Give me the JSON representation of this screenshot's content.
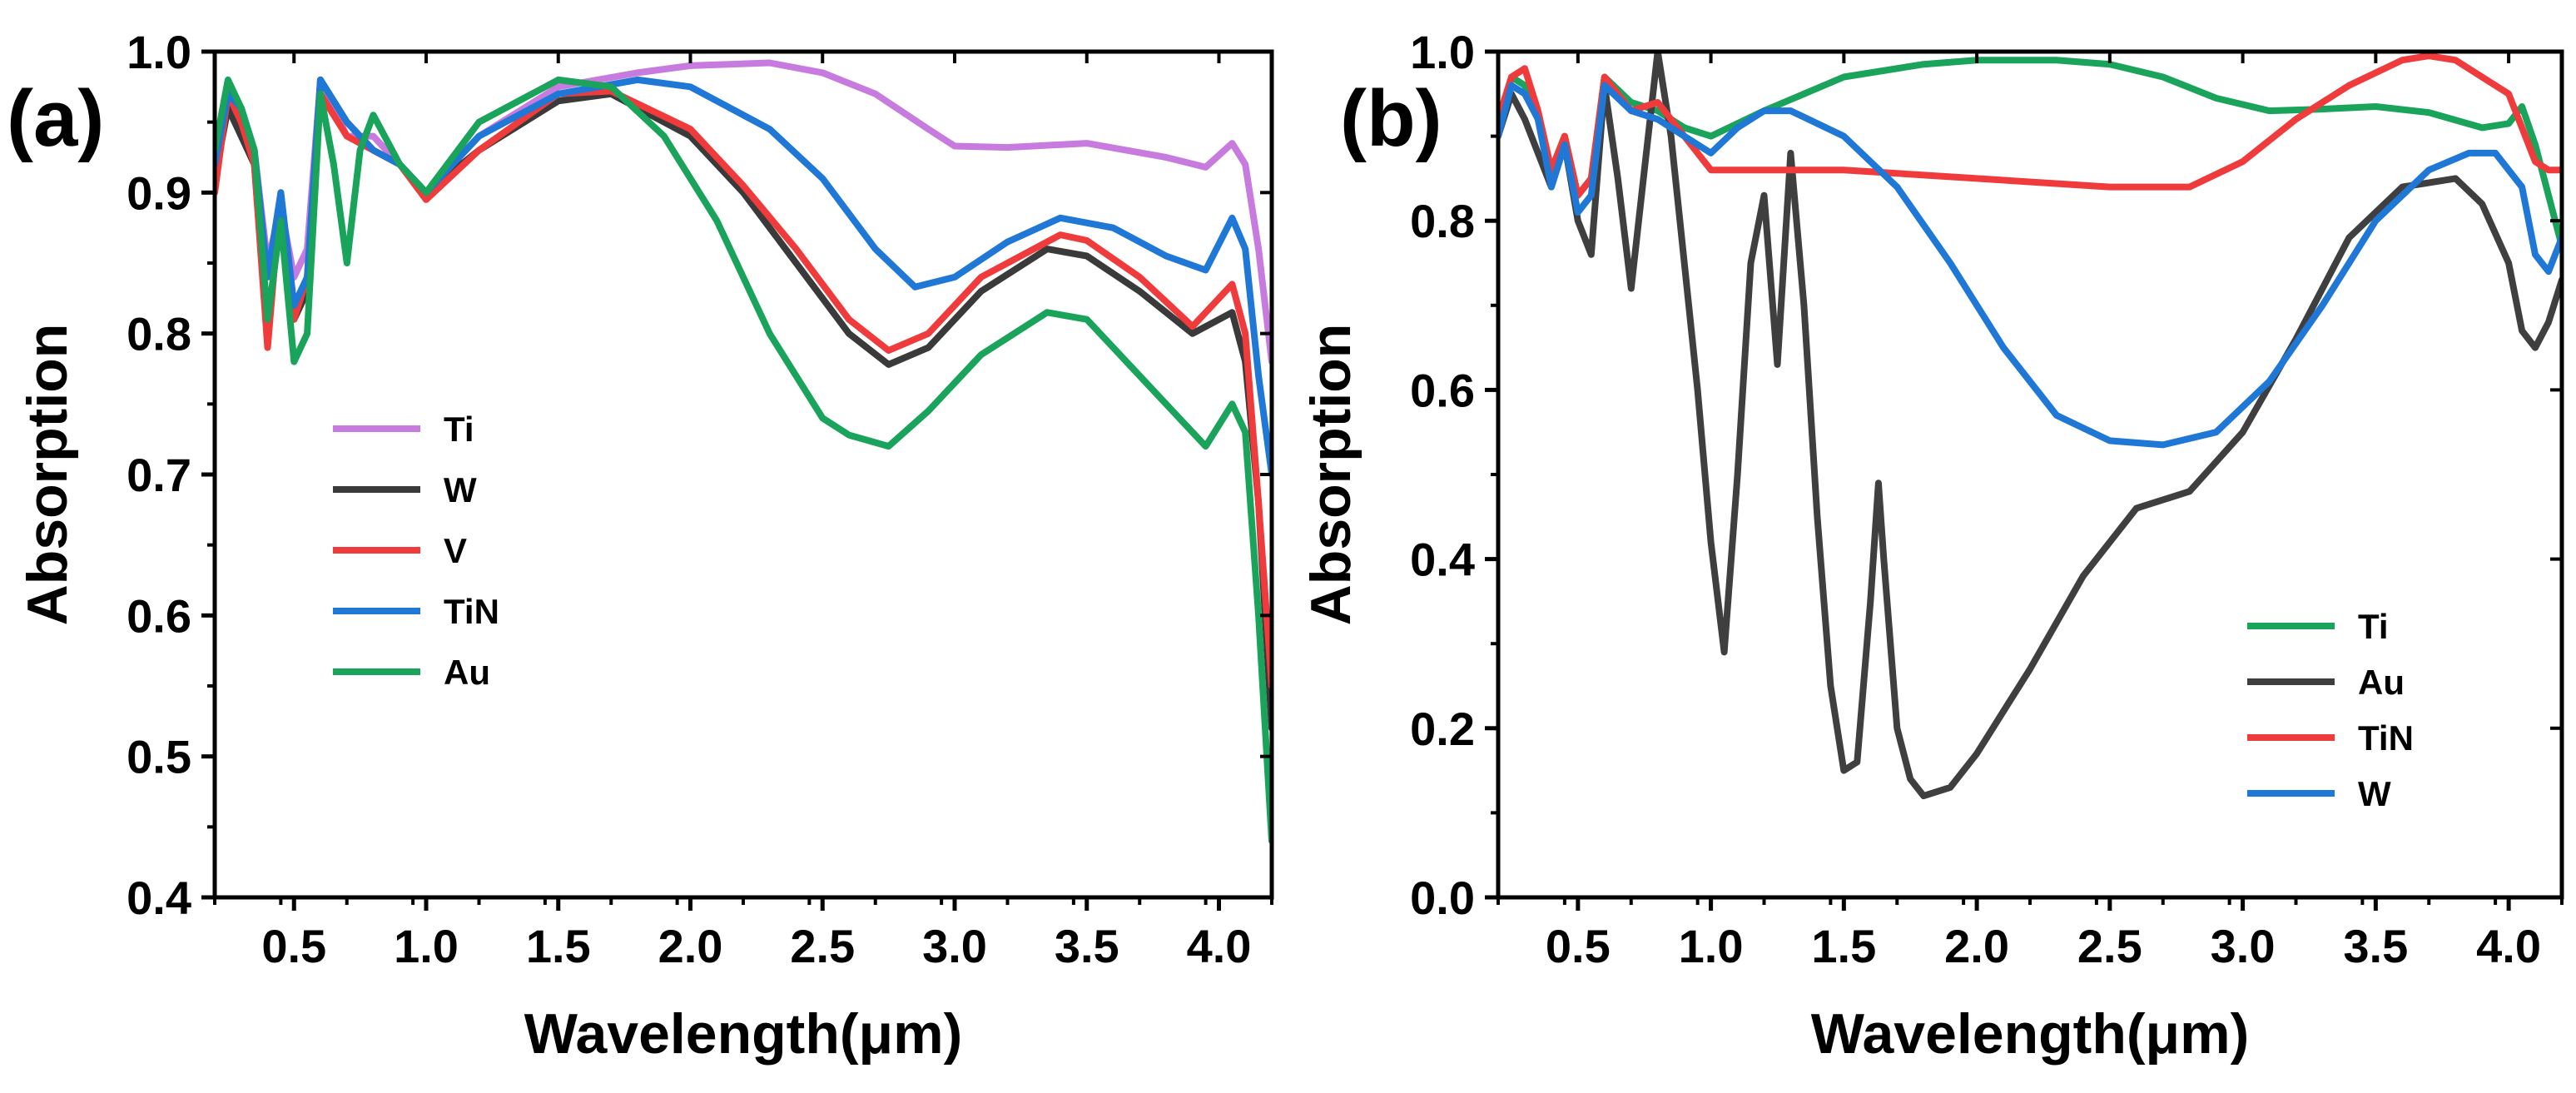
{
  "chart_data": [
    {
      "type": "line",
      "panel_label": "(a)",
      "xlabel": "Wavelength(μm)",
      "ylabel": "Absorption",
      "xlim": [
        0.2,
        4.2
      ],
      "ylim": [
        0.4,
        1.0
      ],
      "xticks": [
        0.5,
        1.0,
        1.5,
        2.0,
        2.5,
        3.0,
        3.5,
        4.0
      ],
      "xtick_labels": [
        "0.5",
        "1.0",
        "1.5",
        "2.0",
        "2.5",
        "3.0",
        "3.5",
        "4.0"
      ],
      "yticks": [
        0.4,
        0.5,
        0.6,
        0.7,
        0.8,
        0.9,
        1.0
      ],
      "ytick_labels": [
        "0.4",
        "0.5",
        "0.6",
        "0.7",
        "0.8",
        "0.9",
        "1.0"
      ],
      "legend_position": "center-left",
      "series": [
        {
          "name": "Ti",
          "color": "#c77bdf",
          "x": [
            0.2,
            0.25,
            0.3,
            0.35,
            0.4,
            0.45,
            0.5,
            0.55,
            0.6,
            0.7,
            0.8,
            0.9,
            1.0,
            1.2,
            1.5,
            1.8,
            2.0,
            2.3,
            2.5,
            2.7,
            2.9,
            3.0,
            3.2,
            3.5,
            3.8,
            3.95,
            4.05,
            4.1,
            4.15,
            4.2
          ],
          "y": [
            0.93,
            0.97,
            0.96,
            0.93,
            0.85,
            0.89,
            0.84,
            0.86,
            0.98,
            0.94,
            0.94,
            0.92,
            0.9,
            0.94,
            0.975,
            0.985,
            0.99,
            0.992,
            0.985,
            0.97,
            0.945,
            0.933,
            0.932,
            0.935,
            0.925,
            0.918,
            0.935,
            0.92,
            0.86,
            0.78
          ]
        },
        {
          "name": "W",
          "color": "#3a3a3a",
          "x": [
            0.2,
            0.25,
            0.3,
            0.35,
            0.4,
            0.45,
            0.5,
            0.55,
            0.6,
            0.7,
            0.8,
            0.9,
            1.0,
            1.2,
            1.5,
            1.7,
            2.0,
            2.2,
            2.4,
            2.6,
            2.75,
            2.9,
            3.1,
            3.35,
            3.5,
            3.7,
            3.9,
            4.05,
            4.1,
            4.15,
            4.2
          ],
          "y": [
            0.91,
            0.96,
            0.94,
            0.92,
            0.8,
            0.89,
            0.81,
            0.83,
            0.98,
            0.95,
            0.93,
            0.92,
            0.9,
            0.93,
            0.965,
            0.97,
            0.94,
            0.9,
            0.85,
            0.8,
            0.778,
            0.79,
            0.83,
            0.86,
            0.855,
            0.83,
            0.8,
            0.815,
            0.78,
            0.68,
            0.52
          ]
        },
        {
          "name": "V",
          "color": "#ef3b3b",
          "x": [
            0.2,
            0.25,
            0.3,
            0.35,
            0.4,
            0.45,
            0.5,
            0.55,
            0.6,
            0.7,
            0.8,
            0.9,
            1.0,
            1.2,
            1.5,
            1.7,
            2.0,
            2.2,
            2.4,
            2.6,
            2.75,
            2.9,
            3.1,
            3.4,
            3.5,
            3.7,
            3.9,
            4.05,
            4.1,
            4.15,
            4.2
          ],
          "y": [
            0.9,
            0.97,
            0.95,
            0.92,
            0.79,
            0.9,
            0.81,
            0.84,
            0.97,
            0.94,
            0.93,
            0.92,
            0.895,
            0.93,
            0.97,
            0.972,
            0.945,
            0.905,
            0.86,
            0.81,
            0.788,
            0.8,
            0.84,
            0.87,
            0.866,
            0.84,
            0.805,
            0.835,
            0.8,
            0.68,
            0.55
          ]
        },
        {
          "name": "TiN",
          "color": "#1f77d6",
          "x": [
            0.2,
            0.25,
            0.3,
            0.35,
            0.4,
            0.45,
            0.5,
            0.55,
            0.6,
            0.7,
            0.8,
            0.9,
            1.0,
            1.2,
            1.5,
            1.8,
            2.0,
            2.3,
            2.5,
            2.7,
            2.85,
            3.0,
            3.2,
            3.4,
            3.6,
            3.8,
            3.95,
            4.05,
            4.1,
            4.15,
            4.2
          ],
          "y": [
            0.92,
            0.97,
            0.96,
            0.93,
            0.84,
            0.9,
            0.82,
            0.84,
            0.98,
            0.95,
            0.93,
            0.92,
            0.9,
            0.94,
            0.97,
            0.98,
            0.975,
            0.945,
            0.91,
            0.86,
            0.833,
            0.84,
            0.865,
            0.882,
            0.875,
            0.855,
            0.845,
            0.882,
            0.86,
            0.77,
            0.7
          ]
        },
        {
          "name": "Au",
          "color": "#1aa35a",
          "x": [
            0.2,
            0.25,
            0.3,
            0.35,
            0.4,
            0.45,
            0.5,
            0.55,
            0.6,
            0.65,
            0.7,
            0.75,
            0.8,
            0.9,
            1.0,
            1.2,
            1.5,
            1.7,
            1.9,
            2.1,
            2.3,
            2.5,
            2.6,
            2.75,
            2.9,
            3.1,
            3.35,
            3.5,
            3.7,
            3.85,
            3.95,
            4.05,
            4.1,
            4.15,
            4.2
          ],
          "y": [
            0.93,
            0.98,
            0.96,
            0.93,
            0.81,
            0.88,
            0.78,
            0.8,
            0.97,
            0.92,
            0.85,
            0.93,
            0.955,
            0.92,
            0.9,
            0.95,
            0.98,
            0.975,
            0.94,
            0.88,
            0.8,
            0.74,
            0.728,
            0.72,
            0.745,
            0.785,
            0.815,
            0.81,
            0.77,
            0.74,
            0.72,
            0.75,
            0.73,
            0.6,
            0.44
          ]
        }
      ]
    },
    {
      "type": "line",
      "panel_label": "(b)",
      "xlabel": "Wavelength(μm)",
      "ylabel": "Absorption",
      "xlim": [
        0.2,
        4.2
      ],
      "ylim": [
        0.0,
        1.0
      ],
      "xticks": [
        0.5,
        1.0,
        1.5,
        2.0,
        2.5,
        3.0,
        3.5,
        4.0
      ],
      "xtick_labels": [
        "0.5",
        "1.0",
        "1.5",
        "2.0",
        "2.5",
        "3.0",
        "3.5",
        "4.0"
      ],
      "yticks": [
        0.0,
        0.2,
        0.4,
        0.6,
        0.8,
        1.0
      ],
      "ytick_labels": [
        "0.0",
        "0.2",
        "0.4",
        "0.6",
        "0.8",
        "1.0"
      ],
      "legend_position": "bottom-right",
      "series": [
        {
          "name": "Ti",
          "color": "#1aa35a",
          "x": [
            0.2,
            0.25,
            0.3,
            0.35,
            0.4,
            0.45,
            0.5,
            0.55,
            0.6,
            0.7,
            0.8,
            0.9,
            1.0,
            1.2,
            1.5,
            1.8,
            2.0,
            2.3,
            2.5,
            2.7,
            2.9,
            3.1,
            3.3,
            3.5,
            3.7,
            3.9,
            4.0,
            4.05,
            4.1,
            4.15,
            4.2
          ],
          "y": [
            0.91,
            0.97,
            0.96,
            0.92,
            0.86,
            0.9,
            0.83,
            0.85,
            0.97,
            0.94,
            0.93,
            0.91,
            0.9,
            0.93,
            0.97,
            0.985,
            0.99,
            0.99,
            0.985,
            0.97,
            0.945,
            0.93,
            0.932,
            0.935,
            0.928,
            0.91,
            0.915,
            0.935,
            0.89,
            0.83,
            0.77
          ]
        },
        {
          "name": "Au",
          "color": "#3f3f3f",
          "x": [
            0.2,
            0.25,
            0.3,
            0.35,
            0.4,
            0.45,
            0.5,
            0.55,
            0.6,
            0.65,
            0.7,
            0.75,
            0.8,
            0.85,
            0.9,
            0.95,
            1.0,
            1.05,
            1.1,
            1.15,
            1.2,
            1.25,
            1.3,
            1.35,
            1.4,
            1.45,
            1.5,
            1.55,
            1.6,
            1.63,
            1.65,
            1.7,
            1.75,
            1.8,
            1.9,
            2.0,
            2.2,
            2.4,
            2.6,
            2.8,
            3.0,
            3.2,
            3.4,
            3.6,
            3.8,
            3.9,
            4.0,
            4.05,
            4.1,
            4.15,
            4.2
          ],
          "y": [
            0.9,
            0.95,
            0.92,
            0.88,
            0.84,
            0.89,
            0.8,
            0.76,
            0.96,
            0.85,
            0.72,
            0.86,
            1.0,
            0.9,
            0.75,
            0.6,
            0.42,
            0.29,
            0.5,
            0.75,
            0.83,
            0.63,
            0.88,
            0.7,
            0.45,
            0.25,
            0.15,
            0.16,
            0.35,
            0.49,
            0.4,
            0.2,
            0.14,
            0.12,
            0.13,
            0.17,
            0.27,
            0.38,
            0.46,
            0.48,
            0.55,
            0.66,
            0.78,
            0.84,
            0.85,
            0.82,
            0.75,
            0.67,
            0.65,
            0.68,
            0.73
          ]
        },
        {
          "name": "TiN",
          "color": "#ef3b3b",
          "x": [
            0.2,
            0.25,
            0.3,
            0.35,
            0.4,
            0.45,
            0.5,
            0.55,
            0.6,
            0.65,
            0.7,
            0.8,
            0.9,
            1.0,
            1.2,
            1.5,
            2.0,
            2.5,
            2.8,
            3.0,
            3.2,
            3.4,
            3.6,
            3.7,
            3.8,
            3.9,
            4.0,
            4.05,
            4.1,
            4.15,
            4.2
          ],
          "y": [
            0.92,
            0.97,
            0.98,
            0.93,
            0.86,
            0.9,
            0.83,
            0.85,
            0.97,
            0.95,
            0.93,
            0.94,
            0.9,
            0.86,
            0.86,
            0.86,
            0.85,
            0.84,
            0.84,
            0.87,
            0.92,
            0.96,
            0.99,
            0.995,
            0.99,
            0.97,
            0.95,
            0.91,
            0.87,
            0.86,
            0.86
          ]
        },
        {
          "name": "W",
          "color": "#1f77d6",
          "x": [
            0.2,
            0.25,
            0.3,
            0.35,
            0.4,
            0.45,
            0.5,
            0.55,
            0.6,
            0.7,
            0.8,
            0.9,
            1.0,
            1.1,
            1.2,
            1.3,
            1.5,
            1.7,
            1.9,
            2.1,
            2.3,
            2.5,
            2.7,
            2.9,
            3.1,
            3.3,
            3.5,
            3.7,
            3.85,
            3.95,
            4.05,
            4.1,
            4.15,
            4.2
          ],
          "y": [
            0.9,
            0.96,
            0.95,
            0.92,
            0.84,
            0.89,
            0.81,
            0.83,
            0.96,
            0.93,
            0.92,
            0.9,
            0.88,
            0.91,
            0.93,
            0.93,
            0.9,
            0.84,
            0.75,
            0.65,
            0.57,
            0.54,
            0.535,
            0.55,
            0.61,
            0.7,
            0.8,
            0.86,
            0.88,
            0.88,
            0.84,
            0.76,
            0.74,
            0.78
          ]
        }
      ]
    }
  ]
}
